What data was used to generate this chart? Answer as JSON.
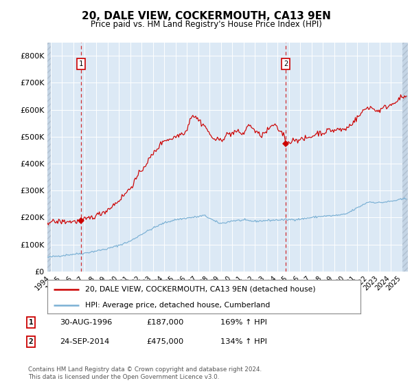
{
  "title": "20, DALE VIEW, COCKERMOUTH, CA13 9EN",
  "subtitle": "Price paid vs. HM Land Registry's House Price Index (HPI)",
  "legend_line1": "20, DALE VIEW, COCKERMOUTH, CA13 9EN (detached house)",
  "legend_line2": "HPI: Average price, detached house, Cumberland",
  "annotation1_label": "1",
  "annotation1_date": "30-AUG-1996",
  "annotation1_price": "£187,000",
  "annotation1_hpi": "169% ↑ HPI",
  "annotation1_year": 1996.67,
  "annotation1_value": 187000,
  "annotation2_label": "2",
  "annotation2_date": "24-SEP-2014",
  "annotation2_price": "£475,000",
  "annotation2_hpi": "134% ↑ HPI",
  "annotation2_year": 2014.73,
  "annotation2_value": 475000,
  "footer1": "Contains HM Land Registry data © Crown copyright and database right 2024.",
  "footer2": "This data is licensed under the Open Government Licence v3.0.",
  "ylim": [
    0,
    850000
  ],
  "xlim_start": 1993.7,
  "xlim_end": 2025.5,
  "background_color": "#dce9f5",
  "red_line_color": "#cc0000",
  "blue_line_color": "#7ab0d4",
  "grid_color": "#ffffff",
  "dashed_line_color": "#cc0000",
  "hpi_key_points": [
    [
      1993.7,
      52000
    ],
    [
      1994.0,
      54000
    ],
    [
      1995.0,
      59000
    ],
    [
      1996.0,
      64000
    ],
    [
      1997.0,
      68000
    ],
    [
      1998.0,
      76000
    ],
    [
      1999.0,
      84000
    ],
    [
      2000.0,
      97000
    ],
    [
      2001.0,
      112000
    ],
    [
      2002.0,
      138000
    ],
    [
      2003.0,
      160000
    ],
    [
      2004.0,
      180000
    ],
    [
      2005.0,
      192000
    ],
    [
      2006.0,
      198000
    ],
    [
      2007.0,
      203000
    ],
    [
      2007.5,
      208000
    ],
    [
      2008.0,
      198000
    ],
    [
      2008.5,
      185000
    ],
    [
      2009.0,
      178000
    ],
    [
      2009.5,
      182000
    ],
    [
      2010.0,
      188000
    ],
    [
      2011.0,
      190000
    ],
    [
      2012.0,
      186000
    ],
    [
      2013.0,
      189000
    ],
    [
      2014.0,
      191000
    ],
    [
      2015.0,
      192000
    ],
    [
      2016.0,
      194000
    ],
    [
      2017.0,
      200000
    ],
    [
      2018.0,
      205000
    ],
    [
      2019.0,
      207000
    ],
    [
      2020.0,
      212000
    ],
    [
      2021.0,
      235000
    ],
    [
      2022.0,
      258000
    ],
    [
      2023.0,
      255000
    ],
    [
      2024.0,
      260000
    ],
    [
      2025.3,
      270000
    ]
  ],
  "red_key_points": [
    [
      1993.7,
      183000
    ],
    [
      1994.0,
      184000
    ],
    [
      1995.0,
      185000
    ],
    [
      1996.0,
      185000
    ],
    [
      1996.67,
      187000
    ],
    [
      1997.0,
      192000
    ],
    [
      1998.0,
      207000
    ],
    [
      1999.0,
      228000
    ],
    [
      2000.0,
      263000
    ],
    [
      2001.0,
      308000
    ],
    [
      2002.0,
      375000
    ],
    [
      2003.0,
      435000
    ],
    [
      2004.0,
      488000
    ],
    [
      2004.5,
      490000
    ],
    [
      2005.0,
      500000
    ],
    [
      2006.0,
      522000
    ],
    [
      2006.3,
      570000
    ],
    [
      2006.5,
      580000
    ],
    [
      2007.0,
      565000
    ],
    [
      2007.3,
      550000
    ],
    [
      2007.7,
      535000
    ],
    [
      2008.0,
      508000
    ],
    [
      2008.5,
      488000
    ],
    [
      2009.0,
      488000
    ],
    [
      2009.3,
      498000
    ],
    [
      2009.6,
      510000
    ],
    [
      2010.0,
      512000
    ],
    [
      2010.3,
      520000
    ],
    [
      2010.6,
      515000
    ],
    [
      2011.0,
      510000
    ],
    [
      2011.3,
      535000
    ],
    [
      2011.6,
      545000
    ],
    [
      2012.0,
      520000
    ],
    [
      2012.3,
      510000
    ],
    [
      2012.6,
      505000
    ],
    [
      2013.0,
      518000
    ],
    [
      2013.3,
      530000
    ],
    [
      2013.6,
      545000
    ],
    [
      2014.0,
      530000
    ],
    [
      2014.3,
      518000
    ],
    [
      2014.6,
      505000
    ],
    [
      2014.73,
      475000
    ],
    [
      2015.0,
      478000
    ],
    [
      2015.3,
      485000
    ],
    [
      2015.6,
      492000
    ],
    [
      2016.0,
      487000
    ],
    [
      2016.3,
      490000
    ],
    [
      2016.6,
      495000
    ],
    [
      2017.0,
      500000
    ],
    [
      2017.3,
      508000
    ],
    [
      2017.6,
      515000
    ],
    [
      2018.0,
      513000
    ],
    [
      2018.3,
      520000
    ],
    [
      2018.6,
      525000
    ],
    [
      2019.0,
      522000
    ],
    [
      2019.3,
      528000
    ],
    [
      2019.6,
      525000
    ],
    [
      2020.0,
      528000
    ],
    [
      2020.3,
      538000
    ],
    [
      2020.6,
      552000
    ],
    [
      2021.0,
      568000
    ],
    [
      2021.3,
      582000
    ],
    [
      2021.6,
      598000
    ],
    [
      2022.0,
      610000
    ],
    [
      2022.3,
      608000
    ],
    [
      2022.6,
      598000
    ],
    [
      2023.0,
      597000
    ],
    [
      2023.3,
      605000
    ],
    [
      2023.6,
      612000
    ],
    [
      2024.0,
      618000
    ],
    [
      2024.3,
      628000
    ],
    [
      2024.6,
      638000
    ],
    [
      2025.3,
      650000
    ]
  ]
}
